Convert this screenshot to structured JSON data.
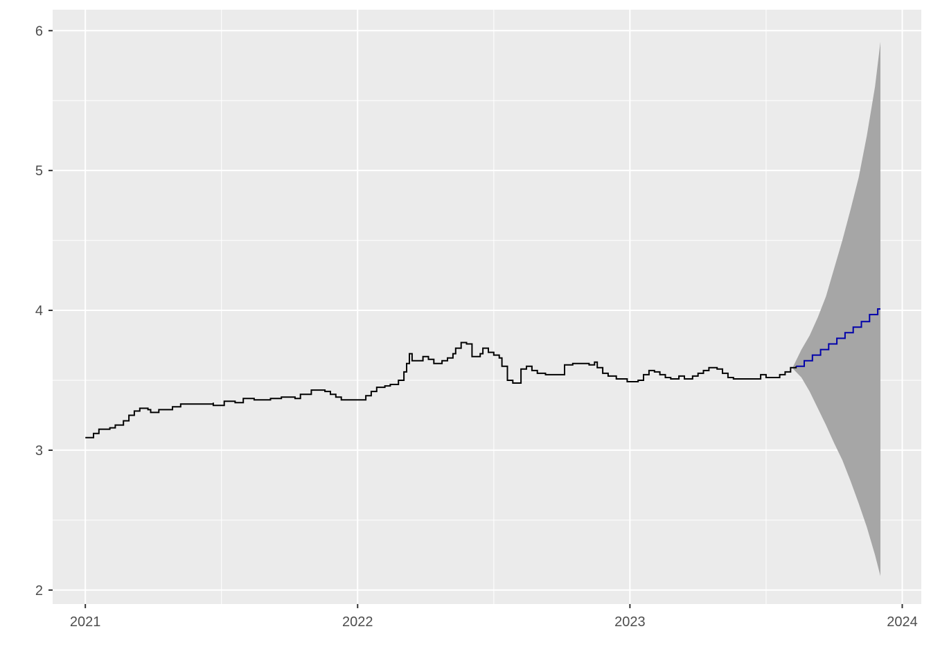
{
  "chart_data": {
    "type": "line",
    "title": "",
    "xlabel": "",
    "ylabel": "",
    "xlim": [
      2020.88,
      2024.07
    ],
    "ylim": [
      1.9,
      6.15
    ],
    "x_ticks": [
      {
        "value": 2021,
        "label": "2021"
      },
      {
        "value": 2022,
        "label": "2022"
      },
      {
        "value": 2023,
        "label": "2023"
      },
      {
        "value": 2024,
        "label": "2024"
      }
    ],
    "y_ticks": [
      {
        "value": 2,
        "label": "2"
      },
      {
        "value": 3,
        "label": "3"
      },
      {
        "value": 4,
        "label": "4"
      },
      {
        "value": 5,
        "label": "5"
      },
      {
        "value": 6,
        "label": "6"
      }
    ],
    "grid": true,
    "colors": {
      "panel": "#ebebeb",
      "grid": "#ffffff",
      "history": "#000000",
      "forecast": "#0000aa",
      "interval": "#a6a6a6"
    },
    "series": [
      {
        "role": "history",
        "step": true,
        "points": [
          [
            2021.0,
            3.09
          ],
          [
            2021.03,
            3.12
          ],
          [
            2021.05,
            3.15
          ],
          [
            2021.09,
            3.16
          ],
          [
            2021.11,
            3.18
          ],
          [
            2021.14,
            3.21
          ],
          [
            2021.16,
            3.25
          ],
          [
            2021.18,
            3.28
          ],
          [
            2021.2,
            3.3
          ],
          [
            2021.23,
            3.29
          ],
          [
            2021.24,
            3.27
          ],
          [
            2021.27,
            3.29
          ],
          [
            2021.32,
            3.31
          ],
          [
            2021.35,
            3.33
          ],
          [
            2021.4,
            3.33
          ],
          [
            2021.47,
            3.34
          ],
          [
            2021.47,
            3.32
          ],
          [
            2021.51,
            3.35
          ],
          [
            2021.55,
            3.34
          ],
          [
            2021.58,
            3.37
          ],
          [
            2021.62,
            3.36
          ],
          [
            2021.68,
            3.37
          ],
          [
            2021.72,
            3.38
          ],
          [
            2021.77,
            3.37
          ],
          [
            2021.79,
            3.4
          ],
          [
            2021.83,
            3.43
          ],
          [
            2021.88,
            3.42
          ],
          [
            2021.9,
            3.4
          ],
          [
            2021.92,
            3.38
          ],
          [
            2021.94,
            3.36
          ],
          [
            2022.03,
            3.39
          ],
          [
            2022.05,
            3.42
          ],
          [
            2022.07,
            3.45
          ],
          [
            2022.1,
            3.46
          ],
          [
            2022.12,
            3.47
          ],
          [
            2022.15,
            3.5
          ],
          [
            2022.17,
            3.56
          ],
          [
            2022.18,
            3.62
          ],
          [
            2022.19,
            3.69
          ],
          [
            2022.2,
            3.64
          ],
          [
            2022.24,
            3.67
          ],
          [
            2022.26,
            3.65
          ],
          [
            2022.28,
            3.62
          ],
          [
            2022.31,
            3.64
          ],
          [
            2022.33,
            3.66
          ],
          [
            2022.35,
            3.69
          ],
          [
            2022.36,
            3.73
          ],
          [
            2022.38,
            3.77
          ],
          [
            2022.4,
            3.76
          ],
          [
            2022.42,
            3.67
          ],
          [
            2022.45,
            3.69
          ],
          [
            2022.46,
            3.73
          ],
          [
            2022.48,
            3.7
          ],
          [
            2022.5,
            3.68
          ],
          [
            2022.52,
            3.66
          ],
          [
            2022.53,
            3.6
          ],
          [
            2022.55,
            3.5
          ],
          [
            2022.57,
            3.48
          ],
          [
            2022.6,
            3.58
          ],
          [
            2022.62,
            3.6
          ],
          [
            2022.64,
            3.57
          ],
          [
            2022.66,
            3.55
          ],
          [
            2022.69,
            3.54
          ],
          [
            2022.76,
            3.61
          ],
          [
            2022.79,
            3.62
          ],
          [
            2022.85,
            3.61
          ],
          [
            2022.87,
            3.63
          ],
          [
            2022.88,
            3.59
          ],
          [
            2022.9,
            3.55
          ],
          [
            2022.92,
            3.53
          ],
          [
            2022.95,
            3.51
          ],
          [
            2022.99,
            3.49
          ],
          [
            2023.03,
            3.5
          ],
          [
            2023.05,
            3.54
          ],
          [
            2023.07,
            3.57
          ],
          [
            2023.09,
            3.56
          ],
          [
            2023.11,
            3.54
          ],
          [
            2023.13,
            3.52
          ],
          [
            2023.15,
            3.51
          ],
          [
            2023.18,
            3.53
          ],
          [
            2023.2,
            3.51
          ],
          [
            2023.23,
            3.53
          ],
          [
            2023.25,
            3.55
          ],
          [
            2023.27,
            3.57
          ],
          [
            2023.29,
            3.59
          ],
          [
            2023.32,
            3.58
          ],
          [
            2023.34,
            3.55
          ],
          [
            2023.36,
            3.52
          ],
          [
            2023.38,
            3.51
          ],
          [
            2023.48,
            3.54
          ],
          [
            2023.5,
            3.52
          ],
          [
            2023.55,
            3.54
          ],
          [
            2023.57,
            3.56
          ],
          [
            2023.59,
            3.59
          ],
          [
            2023.61,
            3.6
          ]
        ],
        "end_x": 2023.61
      },
      {
        "role": "forecast",
        "step": true,
        "points": [
          [
            2023.61,
            3.6
          ],
          [
            2023.64,
            3.64
          ],
          [
            2023.67,
            3.68
          ],
          [
            2023.7,
            3.72
          ],
          [
            2023.73,
            3.76
          ],
          [
            2023.76,
            3.8
          ],
          [
            2023.79,
            3.84
          ],
          [
            2023.82,
            3.88
          ],
          [
            2023.85,
            3.92
          ],
          [
            2023.88,
            3.97
          ],
          [
            2023.91,
            4.01
          ]
        ],
        "end_x": 2023.92
      }
    ],
    "interval": {
      "x": [
        2023.6,
        2023.63,
        2023.66,
        2023.69,
        2023.72,
        2023.75,
        2023.78,
        2023.81,
        2023.84,
        2023.87,
        2023.9,
        2023.92
      ],
      "upper": [
        3.6,
        3.72,
        3.82,
        3.95,
        4.1,
        4.3,
        4.5,
        4.72,
        4.95,
        5.25,
        5.6,
        5.92
      ],
      "lower": [
        3.58,
        3.52,
        3.42,
        3.3,
        3.18,
        3.05,
        2.93,
        2.78,
        2.62,
        2.45,
        2.25,
        2.1
      ]
    }
  }
}
